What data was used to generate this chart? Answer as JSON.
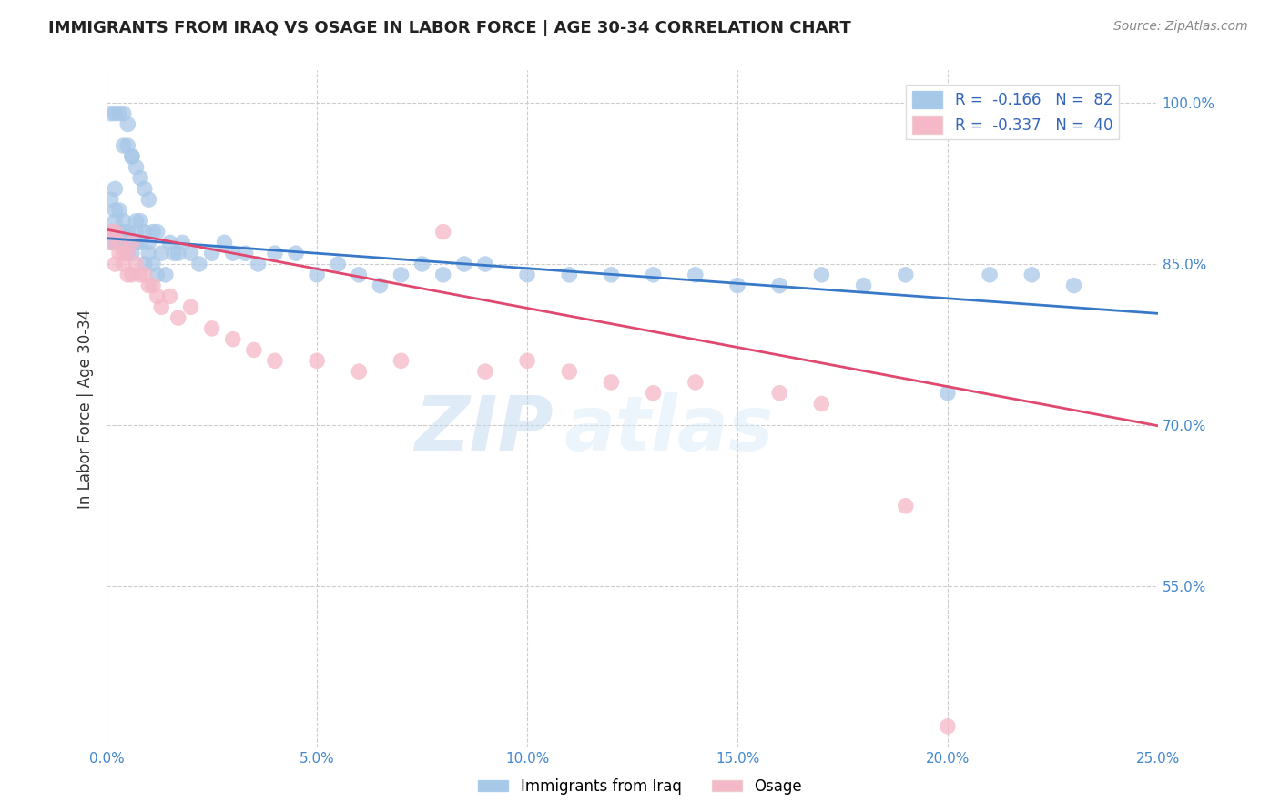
{
  "title": "IMMIGRANTS FROM IRAQ VS OSAGE IN LABOR FORCE | AGE 30-34 CORRELATION CHART",
  "source": "Source: ZipAtlas.com",
  "ylabel": "In Labor Force | Age 30-34",
  "xlim": [
    0.0,
    0.25
  ],
  "ylim": [
    0.4,
    1.03
  ],
  "xticks": [
    0.0,
    0.05,
    0.1,
    0.15,
    0.2,
    0.25
  ],
  "xtick_labels": [
    "0.0%",
    "5.0%",
    "10.0%",
    "15.0%",
    "20.0%",
    "25.0%"
  ],
  "ytick_vals_right": [
    0.55,
    0.7,
    0.85,
    1.0
  ],
  "ytick_labels_right": [
    "55.0%",
    "70.0%",
    "85.0%",
    "100.0%"
  ],
  "legend_r_iraq": "-0.166",
  "legend_n_iraq": "82",
  "legend_r_osage": "-0.337",
  "legend_n_osage": "40",
  "blue_color": "#a8c8e8",
  "pink_color": "#f4b8c8",
  "trendline_blue": "#3878c8",
  "trendline_pink": "#e04870",
  "watermark_zip": "ZIP",
  "watermark_atlas": "atlas",
  "blue_intercept": 0.874,
  "blue_slope": -0.28,
  "pink_intercept": 0.882,
  "pink_slope": -0.73,
  "iraq_x": [
    0.001,
    0.001,
    0.001,
    0.002,
    0.002,
    0.002,
    0.002,
    0.003,
    0.003,
    0.003,
    0.003,
    0.004,
    0.004,
    0.004,
    0.005,
    0.005,
    0.005,
    0.005,
    0.006,
    0.006,
    0.006,
    0.007,
    0.007,
    0.007,
    0.008,
    0.008,
    0.009,
    0.009,
    0.01,
    0.01,
    0.011,
    0.011,
    0.012,
    0.012,
    0.013,
    0.014,
    0.015,
    0.016,
    0.017,
    0.018,
    0.02,
    0.022,
    0.025,
    0.028,
    0.03,
    0.033,
    0.036,
    0.04,
    0.045,
    0.05,
    0.055,
    0.06,
    0.065,
    0.07,
    0.075,
    0.08,
    0.085,
    0.09,
    0.1,
    0.11,
    0.12,
    0.13,
    0.14,
    0.15,
    0.16,
    0.17,
    0.18,
    0.19,
    0.2,
    0.21,
    0.22,
    0.23,
    0.001,
    0.002,
    0.003,
    0.004,
    0.005,
    0.006,
    0.007,
    0.008,
    0.009,
    0.01
  ],
  "iraq_y": [
    0.87,
    0.88,
    0.91,
    0.87,
    0.89,
    0.9,
    0.92,
    0.87,
    0.88,
    0.9,
    0.87,
    0.88,
    0.89,
    0.96,
    0.86,
    0.87,
    0.88,
    0.96,
    0.86,
    0.87,
    0.95,
    0.87,
    0.88,
    0.89,
    0.87,
    0.89,
    0.85,
    0.88,
    0.86,
    0.87,
    0.85,
    0.88,
    0.84,
    0.88,
    0.86,
    0.84,
    0.87,
    0.86,
    0.86,
    0.87,
    0.86,
    0.85,
    0.86,
    0.87,
    0.86,
    0.86,
    0.85,
    0.86,
    0.86,
    0.84,
    0.85,
    0.84,
    0.83,
    0.84,
    0.85,
    0.84,
    0.85,
    0.85,
    0.84,
    0.84,
    0.84,
    0.84,
    0.84,
    0.83,
    0.83,
    0.84,
    0.83,
    0.84,
    0.73,
    0.84,
    0.84,
    0.83,
    0.99,
    0.99,
    0.99,
    0.99,
    0.98,
    0.95,
    0.94,
    0.93,
    0.92,
    0.91
  ],
  "osage_x": [
    0.001,
    0.001,
    0.002,
    0.002,
    0.003,
    0.003,
    0.004,
    0.004,
    0.005,
    0.005,
    0.006,
    0.006,
    0.007,
    0.008,
    0.009,
    0.01,
    0.011,
    0.012,
    0.013,
    0.015,
    0.017,
    0.02,
    0.025,
    0.03,
    0.035,
    0.04,
    0.05,
    0.06,
    0.07,
    0.08,
    0.09,
    0.1,
    0.11,
    0.12,
    0.13,
    0.14,
    0.16,
    0.17,
    0.19,
    0.2
  ],
  "osage_y": [
    0.87,
    0.88,
    0.85,
    0.88,
    0.86,
    0.87,
    0.85,
    0.86,
    0.84,
    0.86,
    0.84,
    0.87,
    0.85,
    0.84,
    0.84,
    0.83,
    0.83,
    0.82,
    0.81,
    0.82,
    0.8,
    0.81,
    0.79,
    0.78,
    0.77,
    0.76,
    0.76,
    0.75,
    0.76,
    0.88,
    0.75,
    0.76,
    0.75,
    0.74,
    0.73,
    0.74,
    0.73,
    0.72,
    0.625,
    0.42
  ]
}
